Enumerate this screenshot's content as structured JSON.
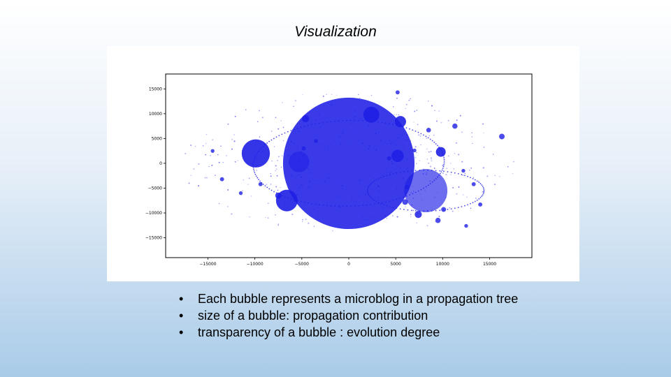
{
  "slide": {
    "title": "Visualization"
  },
  "bullets": [
    {
      "text": "Each bubble represents a microblog in a propagation tree"
    },
    {
      "text": "size of a bubble: propagation contribution"
    },
    {
      "text": "transparency of a bubble : evolution degree"
    }
  ],
  "colors": {
    "bubble": "#1f1fe6",
    "axis": "#000000"
  },
  "chart_data": {
    "type": "scatter",
    "title": "",
    "xlabel": "",
    "ylabel": "",
    "xlim": [
      -19500,
      19500
    ],
    "ylim": [
      -19000,
      18000
    ],
    "xticks": [
      -15000,
      -10000,
      -5000,
      0,
      5000,
      10000,
      15000
    ],
    "xtick_labels": [
      "−15000",
      "−10000",
      "−5000",
      "0",
      "5000",
      "10000",
      "15000"
    ],
    "yticks": [
      15000,
      10000,
      5000,
      0,
      -5000,
      -10000,
      -15000
    ],
    "ytick_labels": [
      "15000",
      "10000",
      "5000",
      "0",
      "−5000",
      "−10000",
      "−15000"
    ],
    "grid": false,
    "legend": "none",
    "bubbles": [
      {
        "x": 0,
        "y": 0,
        "size": 7000,
        "alpha": 0.88
      },
      {
        "x": 8200,
        "y": -5500,
        "size": 2300,
        "alpha": 0.65
      },
      {
        "x": -9900,
        "y": 2000,
        "size": 1500,
        "alpha": 0.9
      },
      {
        "x": -5300,
        "y": 300,
        "size": 1100,
        "alpha": 0.6
      },
      {
        "x": -6600,
        "y": -7500,
        "size": 1150,
        "alpha": 0.9
      },
      {
        "x": 2400,
        "y": 9800,
        "size": 850,
        "alpha": 0.9
      },
      {
        "x": 5200,
        "y": 1500,
        "size": 650,
        "alpha": 0.85
      },
      {
        "x": 5500,
        "y": 8400,
        "size": 600,
        "alpha": 0.9
      },
      {
        "x": 9800,
        "y": 2300,
        "size": 520,
        "alpha": 0.9
      },
      {
        "x": -4600,
        "y": 9000,
        "size": 380,
        "alpha": 0.85
      },
      {
        "x": 7400,
        "y": -10300,
        "size": 380,
        "alpha": 0.85
      },
      {
        "x": -7500,
        "y": -6500,
        "size": 330,
        "alpha": 0.85
      },
      {
        "x": 6000,
        "y": -7800,
        "size": 300,
        "alpha": 0.8
      },
      {
        "x": 11300,
        "y": 7500,
        "size": 280,
        "alpha": 0.8
      },
      {
        "x": 10100,
        "y": -9300,
        "size": 260,
        "alpha": 0.8
      },
      {
        "x": 9500,
        "y": -11500,
        "size": 280,
        "alpha": 0.8
      },
      {
        "x": 16300,
        "y": 5400,
        "size": 300,
        "alpha": 0.8
      },
      {
        "x": 8500,
        "y": 6700,
        "size": 250,
        "alpha": 0.8
      },
      {
        "x": 6200,
        "y": -4800,
        "size": 230,
        "alpha": 0.8
      },
      {
        "x": 4300,
        "y": 1000,
        "size": 230,
        "alpha": 0.8
      },
      {
        "x": -4800,
        "y": 3000,
        "size": 220,
        "alpha": 0.8
      },
      {
        "x": -9400,
        "y": -4200,
        "size": 220,
        "alpha": 0.8
      },
      {
        "x": -13500,
        "y": -3200,
        "size": 220,
        "alpha": 0.8
      },
      {
        "x": 5200,
        "y": 14300,
        "size": 220,
        "alpha": 0.8
      },
      {
        "x": 12200,
        "y": -1500,
        "size": 200,
        "alpha": 0.8
      },
      {
        "x": 13300,
        "y": -4200,
        "size": 220,
        "alpha": 0.8
      },
      {
        "x": 12500,
        "y": -12600,
        "size": 200,
        "alpha": 0.8
      },
      {
        "x": -14500,
        "y": 2500,
        "size": 200,
        "alpha": 0.8
      },
      {
        "x": 14000,
        "y": -8300,
        "size": 220,
        "alpha": 0.8
      },
      {
        "x": -3500,
        "y": 4500,
        "size": 200,
        "alpha": 0.8
      },
      {
        "x": 7000,
        "y": 2600,
        "size": 200,
        "alpha": 0.8
      },
      {
        "x": -11500,
        "y": -6000,
        "size": 200,
        "alpha": 0.8
      }
    ]
  }
}
